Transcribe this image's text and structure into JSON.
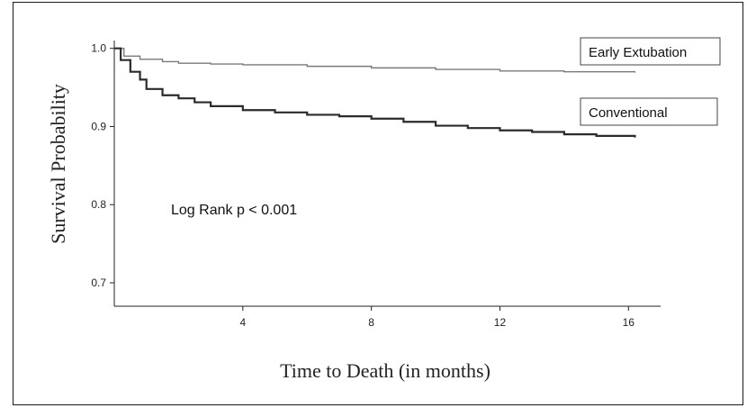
{
  "chart_data": {
    "type": "line",
    "title": "",
    "xlabel": "Time to Death (in months)",
    "ylabel": "Survival Probability",
    "xlim": [
      0,
      17
    ],
    "ylim": [
      0.67,
      1.01
    ],
    "x_ticks": [
      4,
      8,
      12,
      16
    ],
    "y_ticks": [
      0.7,
      0.8,
      0.9,
      1.0
    ],
    "x_tick_labels": [
      "4",
      "8",
      "12",
      "16"
    ],
    "y_tick_labels": [
      "0.7",
      "0.8",
      "0.9",
      "1.0"
    ],
    "grid": false,
    "legend_placement": "labels at right end of curves",
    "annotation": "Log Rank p < 0.001",
    "series": [
      {
        "name": "Early Extubation",
        "color": "#7a7a7a",
        "x": [
          0,
          0.3,
          0.8,
          1.5,
          2,
          3,
          4,
          6,
          8,
          10,
          12,
          14,
          16.2
        ],
        "y": [
          1.0,
          0.99,
          0.986,
          0.983,
          0.981,
          0.98,
          0.979,
          0.977,
          0.975,
          0.973,
          0.971,
          0.97,
          0.969
        ]
      },
      {
        "name": "Conventional",
        "color": "#2b2b2b",
        "x": [
          0,
          0.2,
          0.5,
          0.8,
          1,
          1.5,
          2,
          2.5,
          3,
          4,
          5,
          6,
          7,
          8,
          9,
          10,
          11,
          12,
          13,
          14,
          15,
          16.2
        ],
        "y": [
          1.0,
          0.985,
          0.97,
          0.96,
          0.948,
          0.94,
          0.936,
          0.931,
          0.926,
          0.921,
          0.918,
          0.915,
          0.913,
          0.91,
          0.906,
          0.901,
          0.898,
          0.895,
          0.893,
          0.89,
          0.888,
          0.886
        ]
      }
    ]
  }
}
